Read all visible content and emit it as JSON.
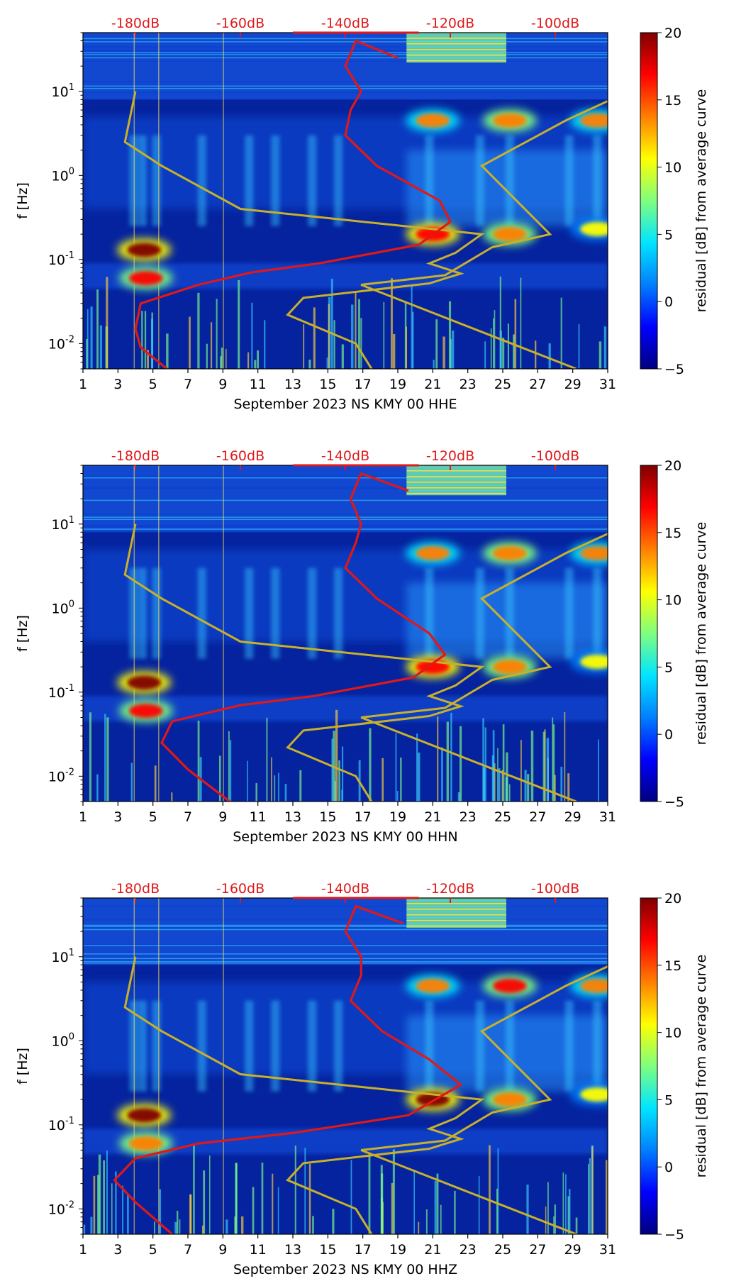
{
  "colors": {
    "spectrogram_background": "#05239e",
    "psd_curve": "#e01818",
    "noise_model_curves": "#c8b02a",
    "db_axis_text": "#e01818",
    "colormap": [
      "#00007f",
      "#0000ff",
      "#007fff",
      "#00e5ff",
      "#7fff7f",
      "#ffff00",
      "#ff7f00",
      "#ff0000",
      "#7f0000"
    ]
  },
  "chart_data": [
    {
      "type": "heatmap",
      "xlabel": "September 2023 NS KMY 00 HHE",
      "ylabel": "f [Hz]",
      "x_ticks": [
        "1",
        "3",
        "5",
        "7",
        "9",
        "11",
        "13",
        "15",
        "17",
        "19",
        "21",
        "23",
        "25",
        "27",
        "29",
        "31"
      ],
      "xlim": [
        1,
        31
      ],
      "y_scale": "log",
      "ylim": [
        0.005,
        50
      ],
      "y_ticks": [
        {
          "exp": "-2",
          "value": 0.01
        },
        {
          "exp": "-1",
          "value": 0.1
        },
        {
          "exp": "0",
          "value": 1
        },
        {
          "exp": "1",
          "value": 10
        }
      ],
      "top_axis_ticks": [
        "-180dB",
        "-160dB",
        "-140dB",
        "-120dB",
        "-100dB"
      ],
      "top_axis_range_db": [
        -190,
        -90
      ],
      "colorbar": {
        "label": "residual [dB] from average curve",
        "range": [
          -5,
          20
        ],
        "ticks": [
          "−5",
          "0",
          "5",
          "10",
          "15",
          "20"
        ]
      },
      "psd_curve_db": [
        [
          -174,
          0.005
        ],
        [
          -179,
          0.009
        ],
        [
          -180,
          0.015
        ],
        [
          -179,
          0.03
        ],
        [
          -168,
          0.05
        ],
        [
          -158,
          0.07
        ],
        [
          -145,
          0.09
        ],
        [
          -126,
          0.15
        ],
        [
          -120,
          0.28
        ],
        [
          -122,
          0.5
        ],
        [
          -134,
          1.3
        ],
        [
          -140,
          3
        ],
        [
          -139,
          6
        ],
        [
          -137,
          10
        ],
        [
          -140,
          20
        ],
        [
          -138,
          40
        ],
        [
          -130,
          25
        ]
      ],
      "noise_model_low": [
        [
          -4.5,
          0.005
        ],
        [
          -4.8,
          0.01
        ],
        [
          -6.1,
          0.022
        ],
        [
          -5.8,
          0.035
        ],
        [
          -3.4,
          0.052
        ],
        [
          -2.8,
          0.068
        ],
        [
          -3.4,
          0.09
        ],
        [
          -2.9,
          0.12
        ],
        [
          -2.4,
          0.2
        ],
        [
          -7.0,
          0.4
        ],
        [
          -8.5,
          1.3
        ],
        [
          -9.2,
          2.5
        ],
        [
          -9.0,
          10
        ]
      ],
      "noise_model_high": [
        [
          -0.6,
          0.005
        ],
        [
          -4.7,
          0.05
        ],
        [
          -3.1,
          0.065
        ],
        [
          -2.2,
          0.14
        ],
        [
          -1.1,
          0.2
        ],
        [
          -2.4,
          1.3
        ],
        [
          -0.8,
          4.5
        ],
        [
          0.4,
          10
        ]
      ],
      "events": [
        {
          "day": 4.5,
          "f": 0.13,
          "level": 20
        },
        {
          "day": 4.6,
          "f": 0.06,
          "level": 17
        },
        {
          "day": 21.0,
          "f": 0.2,
          "level": 18
        },
        {
          "day": 25.4,
          "f": 4.5,
          "level": 15
        },
        {
          "day": 21.0,
          "f": 4.5,
          "level": 13
        },
        {
          "day": 30.4,
          "f": 4.5,
          "level": 13
        },
        {
          "day": 25.4,
          "f": 0.2,
          "level": 14
        },
        {
          "day": 30.4,
          "f": 0.23,
          "level": 10
        }
      ]
    },
    {
      "type": "heatmap",
      "xlabel": "September 2023 NS KMY 00 HHN",
      "ylabel": "f [Hz]",
      "x_ticks": [
        "1",
        "3",
        "5",
        "7",
        "9",
        "11",
        "13",
        "15",
        "17",
        "19",
        "21",
        "23",
        "25",
        "27",
        "29",
        "31"
      ],
      "xlim": [
        1,
        31
      ],
      "y_scale": "log",
      "ylim": [
        0.005,
        50
      ],
      "y_ticks": [
        {
          "exp": "-2",
          "value": 0.01
        },
        {
          "exp": "-1",
          "value": 0.1
        },
        {
          "exp": "0",
          "value": 1
        },
        {
          "exp": "1",
          "value": 10
        }
      ],
      "top_axis_ticks": [
        "-180dB",
        "-160dB",
        "-140dB",
        "-120dB",
        "-100dB"
      ],
      "top_axis_range_db": [
        -190,
        -90
      ],
      "colorbar": {
        "label": "residual [dB] from average curve",
        "range": [
          -5,
          20
        ],
        "ticks": [
          "−5",
          "0",
          "5",
          "10",
          "15",
          "20"
        ]
      },
      "psd_curve_db": [
        [
          -162,
          0.005
        ],
        [
          -170,
          0.012
        ],
        [
          -175,
          0.025
        ],
        [
          -173,
          0.045
        ],
        [
          -160,
          0.07
        ],
        [
          -146,
          0.09
        ],
        [
          -127,
          0.15
        ],
        [
          -121,
          0.28
        ],
        [
          -124,
          0.5
        ],
        [
          -134,
          1.3
        ],
        [
          -140,
          3
        ],
        [
          -138,
          6
        ],
        [
          -137,
          10
        ],
        [
          -139,
          20
        ],
        [
          -137,
          40
        ],
        [
          -128,
          25
        ]
      ],
      "noise_model_low": [
        [
          -4.5,
          0.005
        ],
        [
          -4.8,
          0.01
        ],
        [
          -6.1,
          0.022
        ],
        [
          -5.8,
          0.035
        ],
        [
          -3.4,
          0.052
        ],
        [
          -2.8,
          0.068
        ],
        [
          -3.4,
          0.09
        ],
        [
          -2.9,
          0.12
        ],
        [
          -2.4,
          0.2
        ],
        [
          -7.0,
          0.4
        ],
        [
          -8.5,
          1.3
        ],
        [
          -9.2,
          2.5
        ],
        [
          -9.0,
          10
        ]
      ],
      "noise_model_high": [
        [
          -0.6,
          0.005
        ],
        [
          -4.7,
          0.05
        ],
        [
          -3.1,
          0.065
        ],
        [
          -2.2,
          0.14
        ],
        [
          -1.1,
          0.2
        ],
        [
          -2.4,
          1.3
        ],
        [
          -0.8,
          4.5
        ],
        [
          0.4,
          10
        ]
      ],
      "events": [
        {
          "day": 4.5,
          "f": 0.13,
          "level": 20
        },
        {
          "day": 4.6,
          "f": 0.06,
          "level": 16
        },
        {
          "day": 21.0,
          "f": 0.2,
          "level": 18
        },
        {
          "day": 25.4,
          "f": 4.5,
          "level": 15
        },
        {
          "day": 21.0,
          "f": 4.5,
          "level": 13
        },
        {
          "day": 30.4,
          "f": 4.5,
          "level": 13
        },
        {
          "day": 25.4,
          "f": 0.2,
          "level": 14
        },
        {
          "day": 30.4,
          "f": 0.23,
          "level": 10
        }
      ]
    },
    {
      "type": "heatmap",
      "xlabel": "September 2023 NS KMY 00 HHZ",
      "ylabel": "f [Hz]",
      "x_ticks": [
        "1",
        "3",
        "5",
        "7",
        "9",
        "11",
        "13",
        "15",
        "17",
        "19",
        "21",
        "23",
        "25",
        "27",
        "29",
        "31"
      ],
      "xlim": [
        1,
        31
      ],
      "y_scale": "log",
      "ylim": [
        0.005,
        50
      ],
      "y_ticks": [
        {
          "exp": "-2",
          "value": 0.01
        },
        {
          "exp": "-1",
          "value": 0.1
        },
        {
          "exp": "0",
          "value": 1
        },
        {
          "exp": "1",
          "value": 10
        }
      ],
      "top_axis_ticks": [
        "-180dB",
        "-160dB",
        "-140dB",
        "-120dB",
        "-100dB"
      ],
      "top_axis_range_db": [
        -190,
        -90
      ],
      "colorbar": {
        "label": "residual [dB] from average curve",
        "range": [
          -5,
          20
        ],
        "ticks": [
          "−5",
          "0",
          "5",
          "10",
          "15",
          "20"
        ]
      },
      "psd_curve_db": [
        [
          -173,
          0.005
        ],
        [
          -180,
          0.012
        ],
        [
          -184,
          0.022
        ],
        [
          -180,
          0.04
        ],
        [
          -168,
          0.06
        ],
        [
          -150,
          0.08
        ],
        [
          -128,
          0.13
        ],
        [
          -118,
          0.3
        ],
        [
          -124,
          0.6
        ],
        [
          -133,
          1.3
        ],
        [
          -139,
          3
        ],
        [
          -137,
          6
        ],
        [
          -137,
          10
        ],
        [
          -140,
          20
        ],
        [
          -138,
          40
        ],
        [
          -129,
          25
        ]
      ],
      "noise_model_low": [
        [
          -4.5,
          0.005
        ],
        [
          -4.8,
          0.01
        ],
        [
          -6.1,
          0.022
        ],
        [
          -5.8,
          0.035
        ],
        [
          -3.4,
          0.052
        ],
        [
          -2.8,
          0.068
        ],
        [
          -3.4,
          0.09
        ],
        [
          -2.9,
          0.12
        ],
        [
          -2.4,
          0.2
        ],
        [
          -7.0,
          0.4
        ],
        [
          -8.5,
          1.3
        ],
        [
          -9.2,
          2.5
        ],
        [
          -9.0,
          10
        ]
      ],
      "noise_model_high": [
        [
          -0.6,
          0.005
        ],
        [
          -4.7,
          0.05
        ],
        [
          -3.1,
          0.065
        ],
        [
          -2.2,
          0.14
        ],
        [
          -1.1,
          0.2
        ],
        [
          -2.4,
          1.3
        ],
        [
          -0.8,
          4.5
        ],
        [
          0.4,
          10
        ]
      ],
      "events": [
        {
          "day": 4.5,
          "f": 0.13,
          "level": 20
        },
        {
          "day": 4.6,
          "f": 0.06,
          "level": 14
        },
        {
          "day": 21.0,
          "f": 0.2,
          "level": 19
        },
        {
          "day": 25.4,
          "f": 4.5,
          "level": 16
        },
        {
          "day": 21.0,
          "f": 4.5,
          "level": 13
        },
        {
          "day": 30.4,
          "f": 4.5,
          "level": 13
        },
        {
          "day": 25.4,
          "f": 0.2,
          "level": 14
        },
        {
          "day": 30.4,
          "f": 0.23,
          "level": 10
        }
      ]
    }
  ]
}
